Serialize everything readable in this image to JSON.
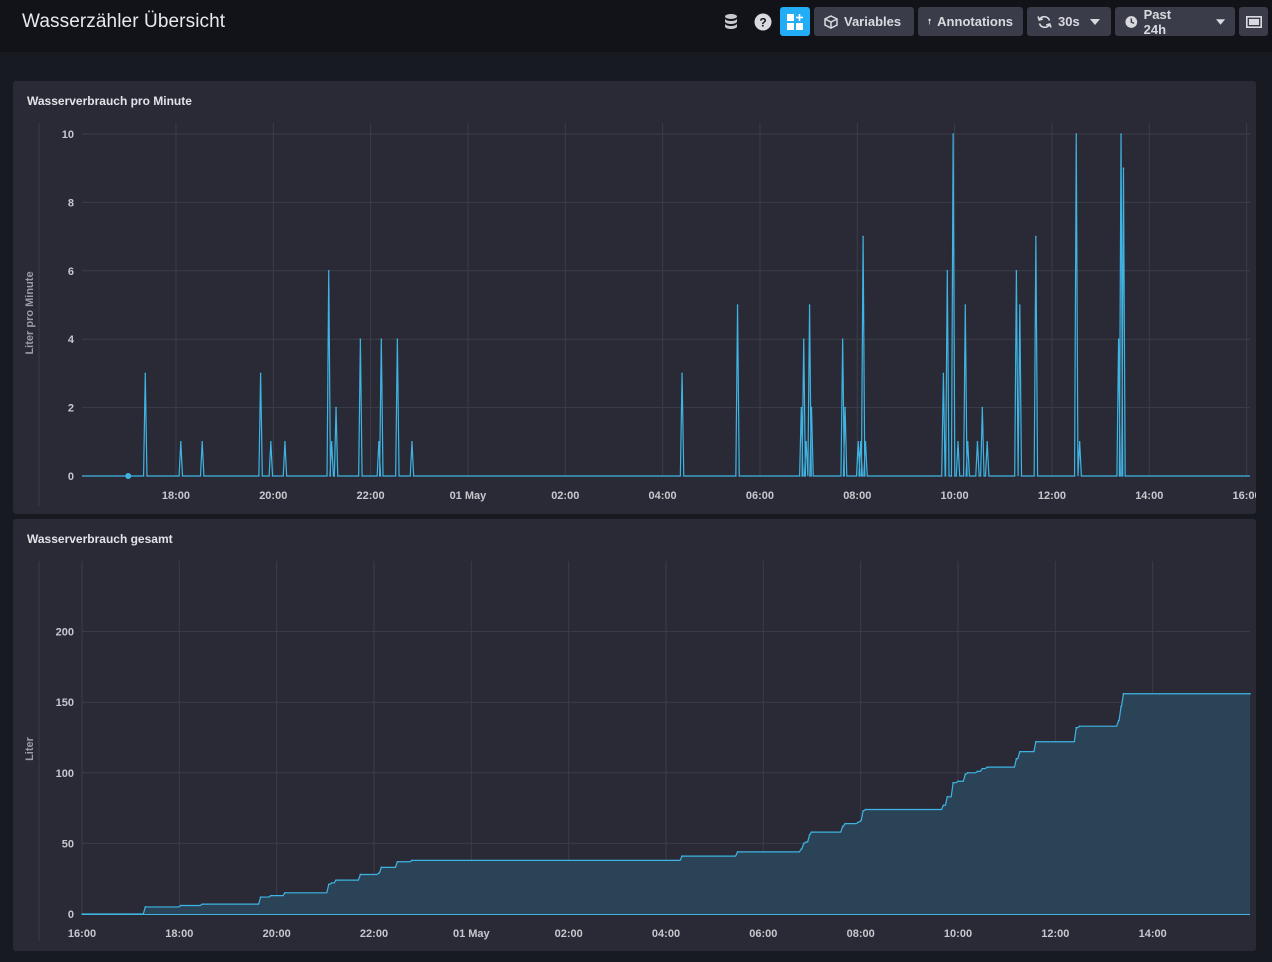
{
  "dashboard": {
    "title": "Wasserzähler Übersicht"
  },
  "toolbar": {
    "variables_label": "Variables",
    "annotations_label": "Annotations",
    "refresh_label": "30s",
    "timerange_label": "Past 24h",
    "icons": [
      "database-icon",
      "help-icon",
      "add-cell-icon",
      "cube-icon",
      "pin-icon",
      "refresh-icon",
      "clock-icon",
      "fullscreen-icon"
    ]
  },
  "colors": {
    "accent": "#22adf6",
    "line": "#3fb4e3",
    "panel": "#292a36",
    "background": "#181a22",
    "header": "#121319"
  },
  "panels": [
    {
      "title": "Wasserverbrauch pro Minute",
      "ylabel": "Liter pro Minute",
      "yticks": [
        "0",
        "2",
        "4",
        "6",
        "8",
        "10"
      ],
      "xticks": [
        "18:00",
        "20:00",
        "22:00",
        "01 May",
        "02:00",
        "04:00",
        "06:00",
        "08:00",
        "10:00",
        "12:00",
        "14:00",
        "16:00"
      ]
    },
    {
      "title": "Wasserverbrauch gesamt",
      "ylabel": "Liter",
      "yticks": [
        "0",
        "50",
        "100",
        "150",
        "200"
      ],
      "xticks": [
        "16:00",
        "18:00",
        "20:00",
        "22:00",
        "01 May",
        "02:00",
        "04:00",
        "06:00",
        "08:00",
        "10:00",
        "12:00",
        "14:00"
      ]
    }
  ],
  "chart_data": [
    {
      "type": "line",
      "title": "Wasserverbrauch pro Minute",
      "ylabel": "Liter pro Minute",
      "xlabel": "",
      "x_unit": "hours since 16:00 (30 Apr)",
      "xlim": [
        0,
        24
      ],
      "ylim": [
        0,
        10
      ],
      "grid": true,
      "series": [
        {
          "name": "",
          "color": "#3fb4e3",
          "spikes": [
            [
              1.3,
              3
            ],
            [
              2.03,
              1
            ],
            [
              2.47,
              1
            ],
            [
              3.67,
              3
            ],
            [
              3.88,
              1
            ],
            [
              4.17,
              1
            ],
            [
              5.07,
              6
            ],
            [
              5.13,
              1
            ],
            [
              5.22,
              2
            ],
            [
              5.72,
              4
            ],
            [
              6.1,
              1
            ],
            [
              6.15,
              4
            ],
            [
              6.48,
              4
            ],
            [
              6.78,
              1
            ],
            [
              12.33,
              3
            ],
            [
              13.47,
              5
            ],
            [
              14.78,
              2
            ],
            [
              14.83,
              4
            ],
            [
              14.88,
              1
            ],
            [
              14.95,
              5
            ],
            [
              14.99,
              2
            ],
            [
              15.63,
              4
            ],
            [
              15.68,
              2
            ],
            [
              15.95,
              1
            ],
            [
              16.0,
              1
            ],
            [
              16.05,
              7
            ],
            [
              16.1,
              1
            ],
            [
              17.7,
              3
            ],
            [
              17.78,
              6
            ],
            [
              17.9,
              10
            ],
            [
              18.0,
              1
            ],
            [
              18.15,
              5
            ],
            [
              18.2,
              1
            ],
            [
              18.4,
              1
            ],
            [
              18.5,
              2
            ],
            [
              18.6,
              1
            ],
            [
              19.2,
              6
            ],
            [
              19.27,
              5
            ],
            [
              19.6,
              7
            ],
            [
              20.43,
              10
            ],
            [
              20.5,
              1
            ],
            [
              21.3,
              4
            ],
            [
              21.35,
              10
            ],
            [
              21.4,
              9
            ]
          ]
        }
      ]
    },
    {
      "type": "area",
      "title": "Wasserverbrauch gesamt",
      "ylabel": "Liter",
      "xlabel": "",
      "x_unit": "hours since 16:00 (30 Apr)",
      "xlim": [
        0,
        24
      ],
      "ylim": [
        0,
        250
      ],
      "grid": true,
      "series": [
        {
          "name": "",
          "color": "#3fb4e3",
          "x": [
            0,
            1.3,
            2.03,
            2.47,
            3.67,
            3.88,
            4.17,
            5.07,
            5.13,
            5.22,
            5.72,
            6.1,
            6.15,
            6.48,
            6.78,
            12.33,
            13.47,
            14.78,
            14.83,
            14.88,
            14.95,
            14.99,
            15.63,
            15.68,
            15.95,
            16.0,
            16.05,
            16.1,
            17.7,
            17.78,
            17.9,
            18.0,
            18.15,
            18.2,
            18.4,
            18.5,
            18.6,
            19.2,
            19.27,
            19.6,
            20.43,
            20.5,
            21.3,
            21.35,
            21.4,
            24
          ],
          "values": [
            0,
            5,
            6,
            7,
            12,
            13,
            15,
            21,
            22,
            24,
            28,
            29,
            33,
            37,
            38,
            41,
            44,
            46,
            50,
            51,
            56,
            58,
            62,
            64,
            65,
            66,
            73,
            74,
            77,
            83,
            93,
            94,
            99,
            100,
            101,
            103,
            104,
            110,
            115,
            122,
            132,
            133,
            137,
            147,
            156,
            156
          ]
        }
      ]
    }
  ]
}
